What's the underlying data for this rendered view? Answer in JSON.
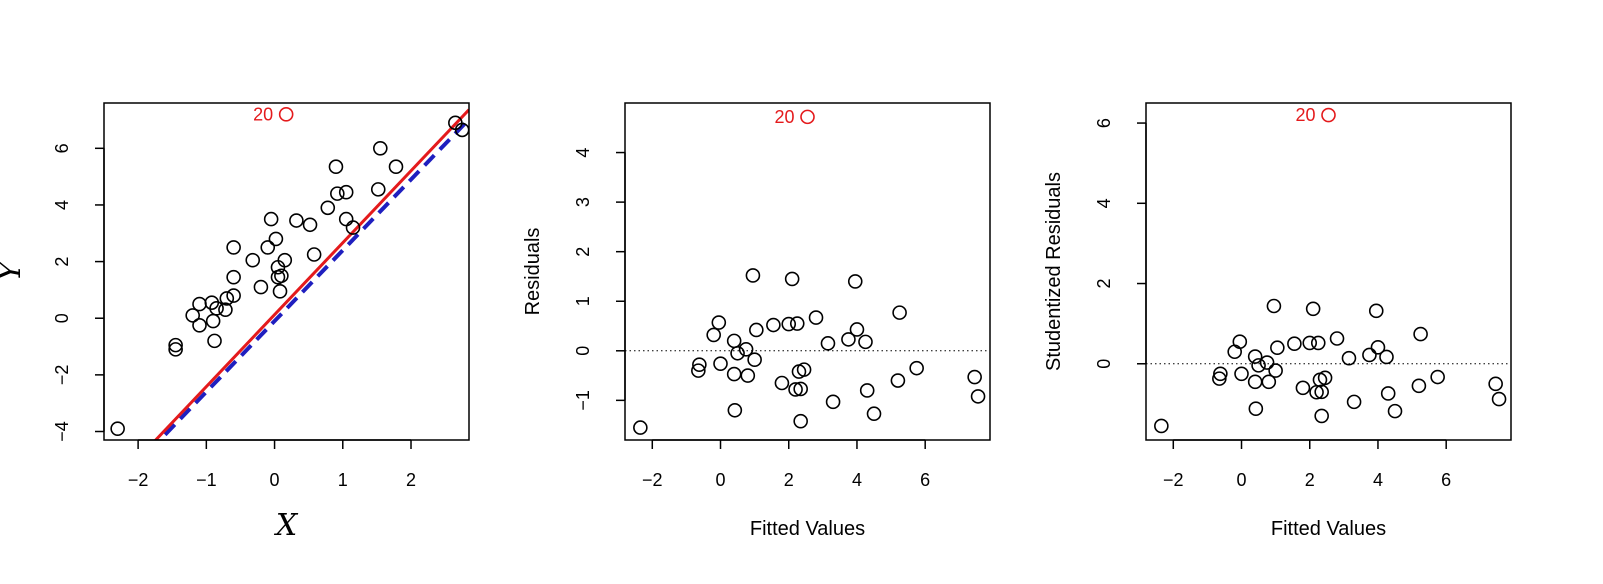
{
  "colors": {
    "points": "#000000",
    "outlier": "#e41a1c",
    "fit_line": "#e41a1c",
    "ref_line": "#1f1fbf"
  },
  "chart_data": [
    {
      "type": "scatter",
      "xlabel": "X",
      "ylabel": "Y",
      "xlim": [
        -2.5,
        2.85
      ],
      "ylim": [
        -4.3,
        7.6
      ],
      "xticks": [
        -2,
        -1,
        0,
        1,
        2
      ],
      "yticks": [
        -4,
        -2,
        0,
        2,
        4,
        6
      ],
      "x_tick_labels": [
        "−2",
        "−1",
        "0",
        "1",
        "2"
      ],
      "y_tick_labels": [
        "−4",
        "−2",
        "0",
        "2",
        "4",
        "6"
      ],
      "points": [
        [
          -2.3,
          -3.9
        ],
        [
          -1.45,
          -1.1
        ],
        [
          -1.45,
          -0.95
        ],
        [
          -1.2,
          0.1
        ],
        [
          -1.1,
          -0.25
        ],
        [
          -1.1,
          0.5
        ],
        [
          -0.92,
          0.55
        ],
        [
          -0.9,
          -0.1
        ],
        [
          -0.88,
          -0.8
        ],
        [
          -0.85,
          0.35
        ],
        [
          -0.72,
          0.3
        ],
        [
          -0.7,
          0.7
        ],
        [
          -0.6,
          0.8
        ],
        [
          -0.6,
          1.45
        ],
        [
          -0.6,
          2.5
        ],
        [
          -0.32,
          2.05
        ],
        [
          -0.2,
          1.1
        ],
        [
          -0.1,
          2.5
        ],
        [
          -0.05,
          3.5
        ],
        [
          0.02,
          2.8
        ],
        [
          0.05,
          1.45
        ],
        [
          0.05,
          1.8
        ],
        [
          0.08,
          0.95
        ],
        [
          0.1,
          1.5
        ],
        [
          0.15,
          2.05
        ],
        [
          0.32,
          3.45
        ],
        [
          0.52,
          3.3
        ],
        [
          0.58,
          2.25
        ],
        [
          0.78,
          3.9
        ],
        [
          0.9,
          5.35
        ],
        [
          0.92,
          4.4
        ],
        [
          1.05,
          4.45
        ],
        [
          1.05,
          3.5
        ],
        [
          1.15,
          3.2
        ],
        [
          1.52,
          4.55
        ],
        [
          1.55,
          6.0
        ],
        [
          1.78,
          5.35
        ],
        [
          2.65,
          6.9
        ],
        [
          2.75,
          6.65
        ]
      ],
      "outlier": {
        "label": "20",
        "x": 0.17,
        "y": 7.2
      },
      "fit_line": {
        "intercept": 0.125,
        "slope": 2.54
      },
      "reference_line": {
        "intercept": -0.1,
        "slope": 2.5,
        "style": "dashed"
      }
    },
    {
      "type": "scatter",
      "xlabel": "Fitted Values",
      "ylabel": "Residuals",
      "xlim": [
        -2.8,
        7.9
      ],
      "ylim": [
        -1.8,
        5.0
      ],
      "xticks": [
        -2,
        0,
        2,
        4,
        6
      ],
      "yticks": [
        -1,
        0,
        1,
        2,
        3,
        4
      ],
      "x_tick_labels": [
        "−2",
        "0",
        "2",
        "4",
        "6"
      ],
      "y_tick_labels": [
        "−1",
        "0",
        "1",
        "2",
        "3",
        "4"
      ],
      "h_line": 0,
      "points": [
        [
          -2.35,
          -1.55
        ],
        [
          -0.65,
          -0.4
        ],
        [
          -0.62,
          -0.28
        ],
        [
          -0.2,
          0.32
        ],
        [
          -0.05,
          0.57
        ],
        [
          0.0,
          -0.26
        ],
        [
          0.4,
          -0.47
        ],
        [
          0.4,
          0.2
        ],
        [
          0.42,
          -1.2
        ],
        [
          0.5,
          -0.05
        ],
        [
          0.75,
          0.03
        ],
        [
          0.8,
          -0.5
        ],
        [
          0.95,
          1.52
        ],
        [
          1.0,
          -0.18
        ],
        [
          1.05,
          0.42
        ],
        [
          1.55,
          0.52
        ],
        [
          1.8,
          -0.65
        ],
        [
          2.0,
          0.54
        ],
        [
          2.1,
          1.45
        ],
        [
          2.2,
          -0.78
        ],
        [
          2.25,
          0.55
        ],
        [
          2.3,
          -0.42
        ],
        [
          2.35,
          -0.77
        ],
        [
          2.35,
          -1.42
        ],
        [
          2.45,
          -0.38
        ],
        [
          2.8,
          0.67
        ],
        [
          3.15,
          0.15
        ],
        [
          3.3,
          -1.03
        ],
        [
          3.75,
          0.23
        ],
        [
          3.95,
          1.4
        ],
        [
          4.0,
          0.43
        ],
        [
          4.25,
          0.18
        ],
        [
          4.3,
          -0.8
        ],
        [
          4.5,
          -1.27
        ],
        [
          5.2,
          -0.6
        ],
        [
          5.25,
          0.77
        ],
        [
          5.75,
          -0.35
        ],
        [
          7.45,
          -0.53
        ],
        [
          7.55,
          -0.92
        ]
      ],
      "outlier": {
        "label": "20",
        "x": 2.55,
        "y": 4.72
      }
    },
    {
      "type": "scatter",
      "xlabel": "Fitted Values",
      "ylabel": "Studentized Residuals",
      "xlim": [
        -2.8,
        7.9
      ],
      "ylim": [
        -1.9,
        6.5
      ],
      "xticks": [
        -2,
        0,
        2,
        4,
        6
      ],
      "yticks": [
        0,
        2,
        4,
        6
      ],
      "x_tick_labels": [
        "−2",
        "0",
        "2",
        "4",
        "6"
      ],
      "y_tick_labels": [
        "0",
        "2",
        "4",
        "6"
      ],
      "h_line": 0,
      "points": [
        [
          -2.35,
          -1.55
        ],
        [
          -0.65,
          -0.37
        ],
        [
          -0.62,
          -0.25
        ],
        [
          -0.2,
          0.3
        ],
        [
          -0.05,
          0.55
        ],
        [
          0.0,
          -0.25
        ],
        [
          0.4,
          -0.45
        ],
        [
          0.4,
          0.18
        ],
        [
          0.42,
          -1.12
        ],
        [
          0.5,
          -0.04
        ],
        [
          0.75,
          0.03
        ],
        [
          0.8,
          -0.45
        ],
        [
          0.95,
          1.44
        ],
        [
          1.0,
          -0.17
        ],
        [
          1.05,
          0.4
        ],
        [
          1.55,
          0.5
        ],
        [
          1.8,
          -0.6
        ],
        [
          2.0,
          0.52
        ],
        [
          2.1,
          1.37
        ],
        [
          2.2,
          -0.71
        ],
        [
          2.25,
          0.52
        ],
        [
          2.3,
          -0.4
        ],
        [
          2.35,
          -0.7
        ],
        [
          2.35,
          -1.3
        ],
        [
          2.45,
          -0.35
        ],
        [
          2.8,
          0.63
        ],
        [
          3.15,
          0.14
        ],
        [
          3.3,
          -0.95
        ],
        [
          3.75,
          0.22
        ],
        [
          3.95,
          1.32
        ],
        [
          4.0,
          0.41
        ],
        [
          4.25,
          0.17
        ],
        [
          4.3,
          -0.74
        ],
        [
          4.5,
          -1.18
        ],
        [
          5.2,
          -0.55
        ],
        [
          5.25,
          0.74
        ],
        [
          5.75,
          -0.33
        ],
        [
          7.45,
          -0.5
        ],
        [
          7.55,
          -0.88
        ]
      ],
      "outlier": {
        "label": "20",
        "x": 2.55,
        "y": 6.2
      }
    }
  ]
}
